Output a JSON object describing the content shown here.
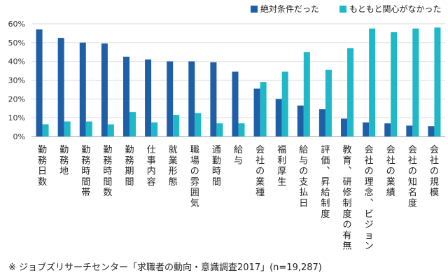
{
  "chart_data": {
    "type": "bar",
    "categories": [
      "勤務日数",
      "勤務地",
      "勤務時間帯",
      "勤務時間数",
      "勤務期間",
      "仕事内容",
      "就業形態",
      "職場の雰囲気",
      "通勤時間",
      "給与",
      "会社の業種",
      "福利厚生",
      "給与の支払日",
      "評価、昇給制度",
      "教育、研修制度の有無",
      "会社の理念、ビジョン",
      "会社の業績",
      "会社の知名度",
      "会社の規模"
    ],
    "series": [
      {
        "name": "絶対条件だった",
        "color": "#1f5fa8",
        "values": [
          57.0,
          52.5,
          50.0,
          49.5,
          42.5,
          41.0,
          40.0,
          40.0,
          39.5,
          34.5,
          25.5,
          20.0,
          16.5,
          14.5,
          9.5,
          7.5,
          7.0,
          5.8,
          5.5
        ]
      },
      {
        "name": "もともと関心がなかった",
        "color": "#1fb8c8",
        "values": [
          6.5,
          8.0,
          8.0,
          6.5,
          13.0,
          7.5,
          11.5,
          12.5,
          7.0,
          7.0,
          29.0,
          34.5,
          45.0,
          35.5,
          47.0,
          57.5,
          55.5,
          57.5,
          58.0
        ]
      }
    ],
    "yticks": [
      "0%",
      "10%",
      "20%",
      "30%",
      "40%",
      "50%",
      "60%"
    ],
    "ylim": [
      0,
      60
    ],
    "grid": true,
    "legend": "top-right"
  },
  "footnote": "※ ジョブズリサーチセンター「求職者の動向・意識調査2017」(n=19,287)"
}
